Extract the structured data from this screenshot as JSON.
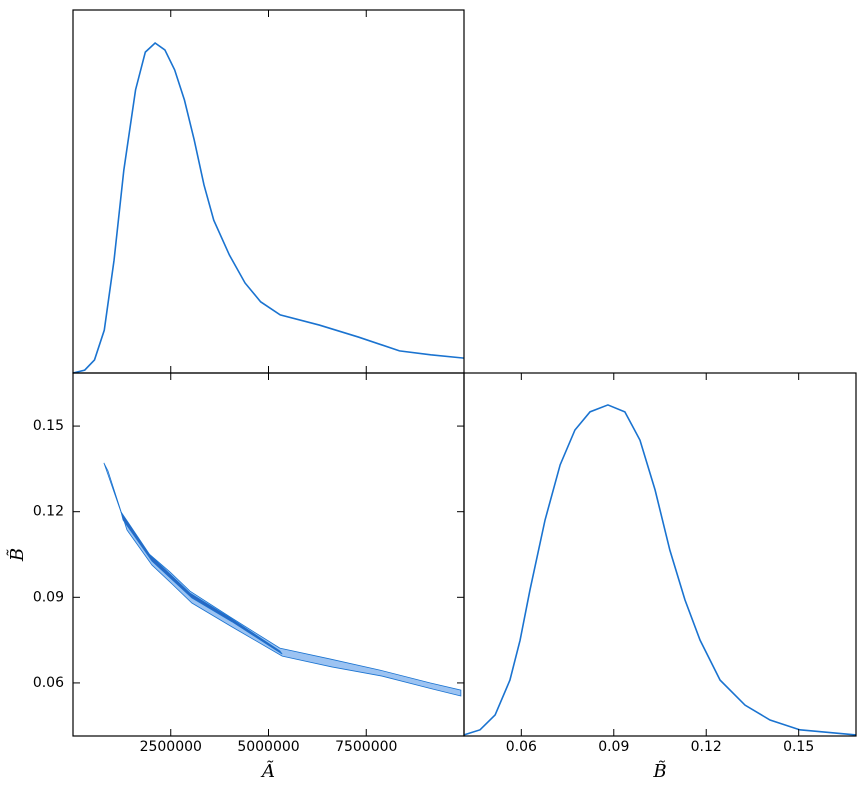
{
  "chart_data": [
    {
      "type": "line",
      "color": "#1a73d0",
      "xlim": [
        0,
        10000000
      ],
      "ylim": [
        0,
        1
      ],
      "x": [
        0,
        300000,
        550000,
        800000,
        1050000,
        1300000,
        1600000,
        1850000,
        2100000,
        2350000,
        2600000,
        2850000,
        3100000,
        3350000,
        3600000,
        4000000,
        4400000,
        4800000,
        5300000,
        6300000,
        7300000,
        8350000,
        9150000,
        10000000
      ],
      "values": [
        0,
        0.008,
        0.036,
        0.118,
        0.311,
        0.559,
        0.78,
        0.884,
        0.909,
        0.89,
        0.835,
        0.752,
        0.642,
        0.518,
        0.421,
        0.325,
        0.248,
        0.196,
        0.16,
        0.132,
        0.099,
        0.061,
        0.05,
        0.041
      ]
    },
    {
      "type": "contour",
      "xlabel": "Ã",
      "ylabel": "B̃",
      "xlim": [
        0,
        10000000
      ],
      "ylim": [
        0.0414,
        0.1686
      ],
      "xticks": [
        2500000,
        5000000,
        7500000
      ],
      "yticks": [
        0.06,
        0.09,
        0.12,
        0.15
      ],
      "series": [
        {
          "color": "#9cc3f2",
          "x": [
            790000,
            1280000,
            1920000,
            2480000,
            2990000,
            4020000,
            5290000,
            6570000,
            7850000,
            9130000,
            9920000,
            9920000,
            9180000,
            7900000,
            6620000,
            5350000,
            4070000,
            3040000,
            2530000,
            2020000,
            1380000,
            895000
          ],
          "values": [
            0.1371,
            0.1178,
            0.1055,
            0.0989,
            0.0922,
            0.0831,
            0.0722,
            0.0684,
            0.0645,
            0.06,
            0.0575,
            0.0554,
            0.0579,
            0.0624,
            0.0656,
            0.0694,
            0.0796,
            0.088,
            0.0947,
            0.1013,
            0.1136,
            0.1343
          ]
        },
        {
          "color": "#2a67c2",
          "x": [
            1230000,
            1970000,
            2990000,
            4020000,
            5290000,
            5350000,
            4070000,
            3040000,
            2020000,
            1280000
          ],
          "values": [
            0.1199,
            0.1048,
            0.0915,
            0.0828,
            0.0712,
            0.0701,
            0.0814,
            0.0898,
            0.1027,
            0.1171
          ]
        }
      ]
    },
    {
      "type": "line",
      "color": "#1a73d0",
      "xlabel": "B̃",
      "xlim": [
        0.0414,
        0.1686
      ],
      "ylim": [
        0,
        1
      ],
      "xticks": [
        0.06,
        0.09,
        0.12,
        0.15
      ],
      "x": [
        0.0414,
        0.0466,
        0.0515,
        0.0563,
        0.0596,
        0.0628,
        0.0677,
        0.0726,
        0.0774,
        0.0823,
        0.0881,
        0.0936,
        0.0985,
        0.1034,
        0.1082,
        0.1131,
        0.118,
        0.1245,
        0.1326,
        0.1407,
        0.1504,
        0.1686
      ],
      "values": [
        0.003,
        0.017,
        0.058,
        0.154,
        0.264,
        0.402,
        0.595,
        0.747,
        0.843,
        0.893,
        0.912,
        0.893,
        0.815,
        0.678,
        0.512,
        0.375,
        0.264,
        0.154,
        0.085,
        0.044,
        0.017,
        0.003
      ]
    }
  ]
}
